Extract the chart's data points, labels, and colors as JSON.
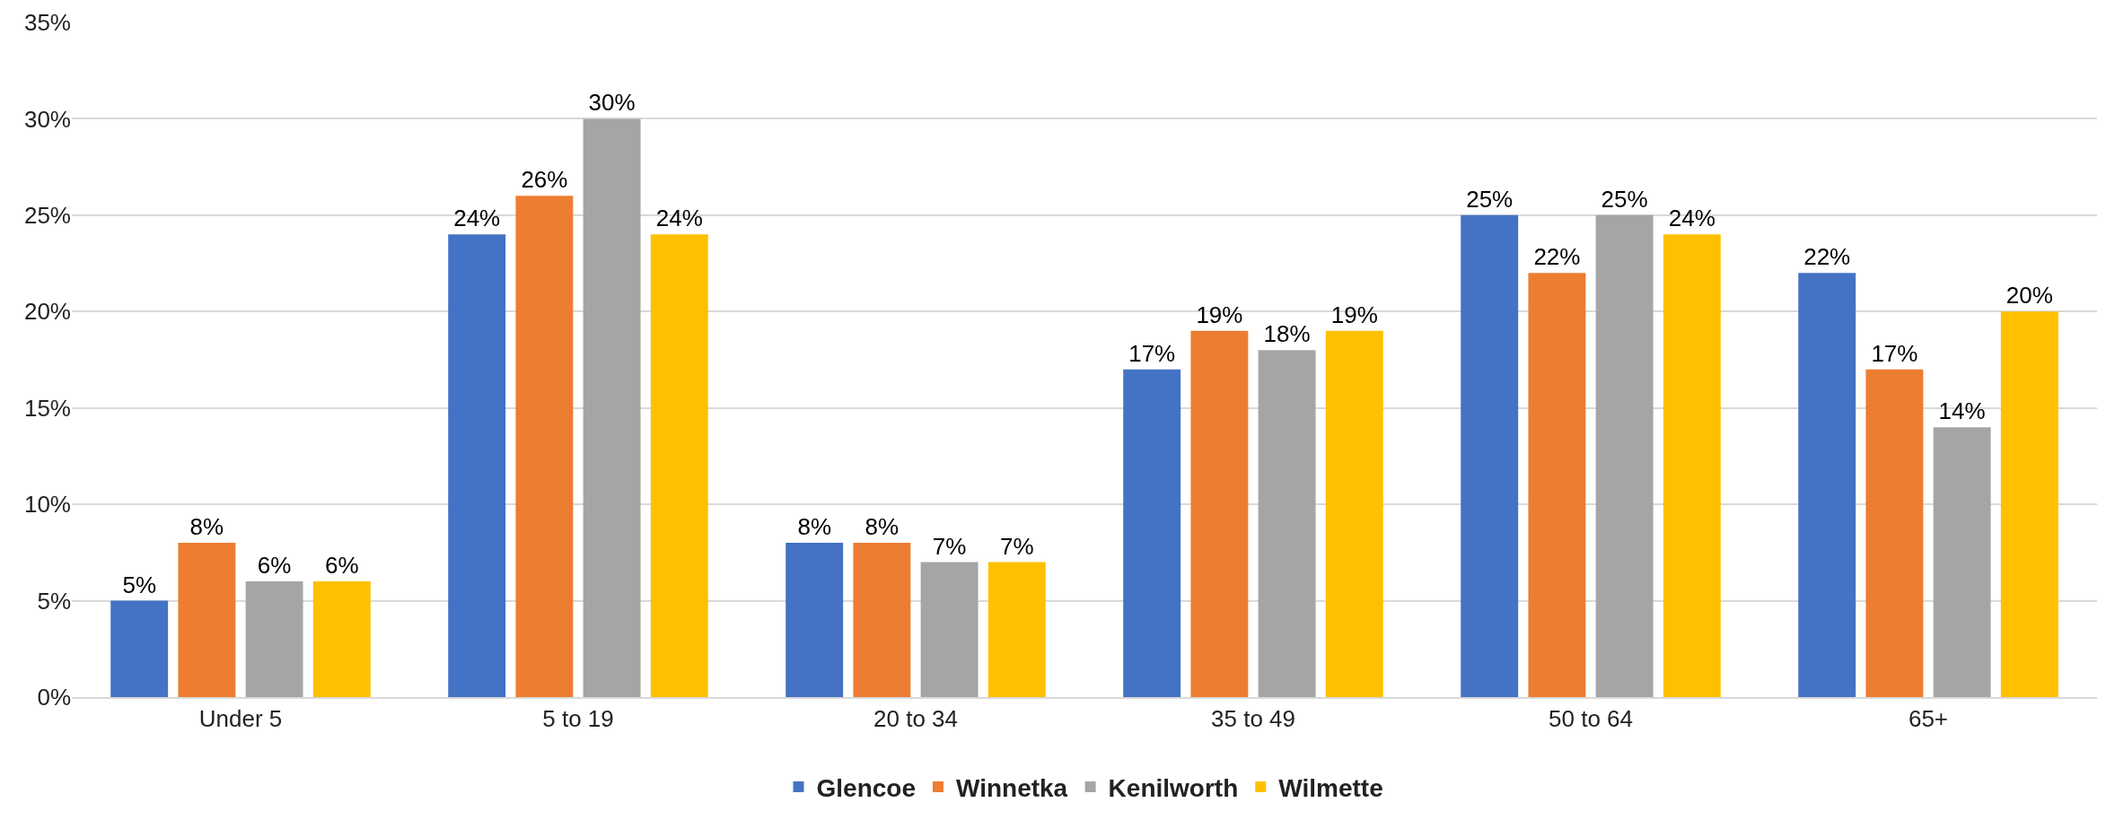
{
  "chart_data": {
    "type": "bar",
    "categories": [
      "Under 5",
      "5 to 19",
      "20 to 34",
      "35 to 49",
      "50 to 64",
      "65+"
    ],
    "series": [
      {
        "name": "Glencoe",
        "color": "#4472c4",
        "values": [
          5,
          24,
          8,
          17,
          25,
          22
        ],
        "value_labels": [
          "5%",
          "24%",
          "8%",
          "17%",
          "25%",
          "22%"
        ]
      },
      {
        "name": "Winnetka",
        "color": "#ed7d31",
        "values": [
          8,
          26,
          8,
          19,
          22,
          17
        ],
        "value_labels": [
          "8%",
          "26%",
          "8%",
          "19%",
          "22%",
          "17%"
        ]
      },
      {
        "name": "Kenilworth",
        "color": "#a5a5a5",
        "values": [
          6,
          30,
          7,
          18,
          25,
          14
        ],
        "value_labels": [
          "6%",
          "30%",
          "7%",
          "18%",
          "25%",
          "14%"
        ]
      },
      {
        "name": "Wilmette",
        "color": "#ffc000",
        "values": [
          6,
          24,
          7,
          19,
          24,
          20
        ],
        "value_labels": [
          "6%",
          "24%",
          "7%",
          "19%",
          "24%",
          "20%"
        ]
      }
    ],
    "ylim": [
      0,
      35
    ],
    "yticks": [
      {
        "value": 0,
        "label": "0%"
      },
      {
        "value": 5,
        "label": "5%"
      },
      {
        "value": 10,
        "label": "10%"
      },
      {
        "value": 15,
        "label": "15%"
      },
      {
        "value": 20,
        "label": "20%"
      },
      {
        "value": 25,
        "label": "25%"
      },
      {
        "value": 30,
        "label": "30%"
      },
      {
        "value": 35,
        "label": "35%"
      }
    ],
    "grid": "y",
    "legend": "bottom"
  }
}
